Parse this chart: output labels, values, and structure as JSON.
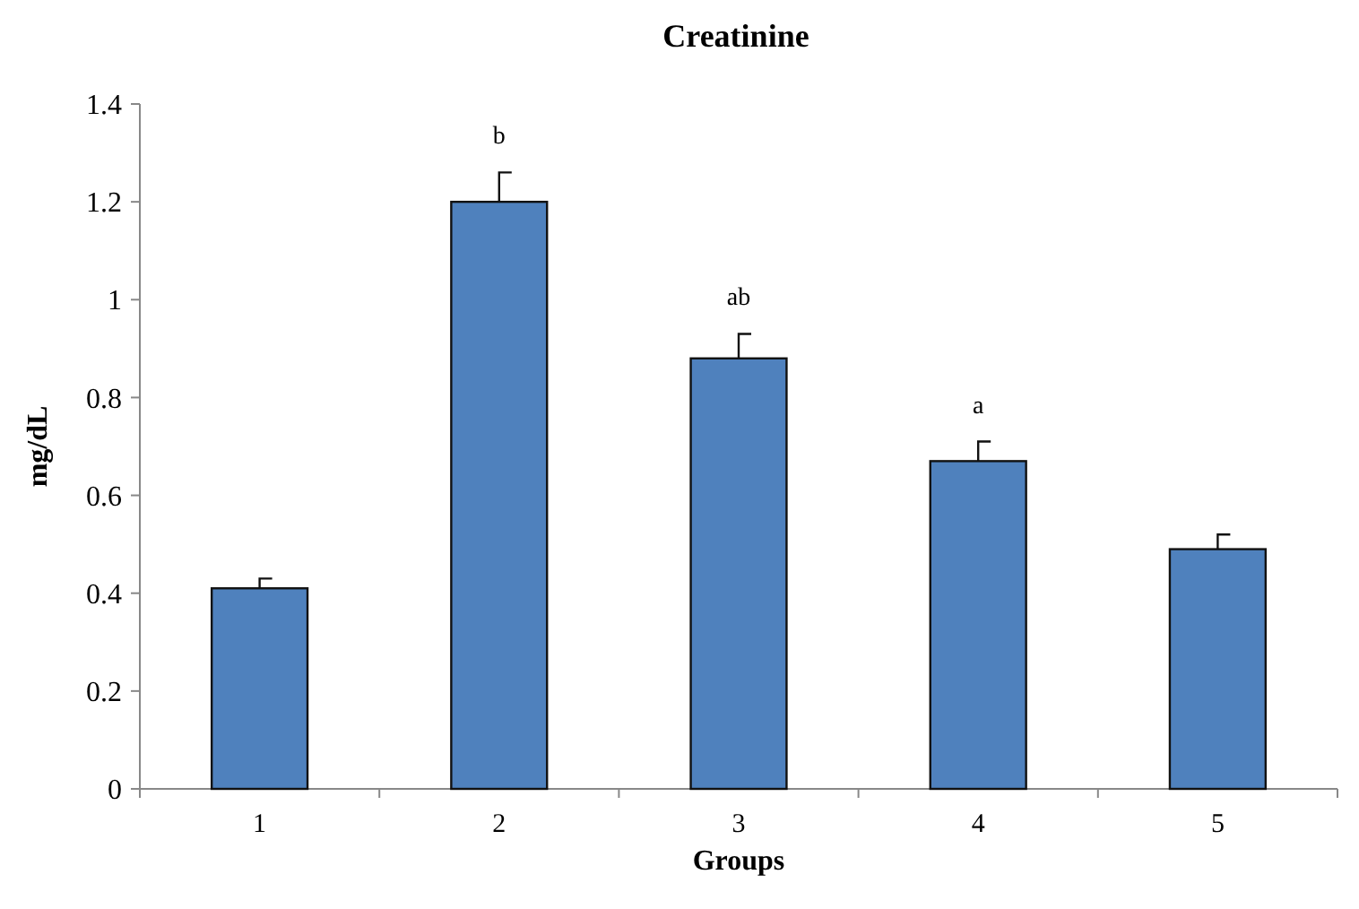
{
  "chart_data": {
    "type": "bar",
    "title": "Creatinine",
    "xlabel": "Groups",
    "ylabel": "mg/dL",
    "categories": [
      "1",
      "2",
      "3",
      "4",
      "5"
    ],
    "values": [
      0.41,
      1.2,
      0.88,
      0.67,
      0.49
    ],
    "errors": [
      [
        0.41,
        0.43
      ],
      [
        1.2,
        1.26
      ],
      [
        0.88,
        0.93
      ],
      [
        0.67,
        0.71
      ],
      [
        0.49,
        0.52
      ]
    ],
    "color": "#4f81bd",
    "ylim": [
      0,
      1.4
    ],
    "yticks": [
      0,
      0.2,
      0.4,
      {
        "value": 0.6,
        "label": "0.6"
      },
      0.8,
      1,
      1.2,
      1.4
    ],
    "annotations": [
      {
        "text": "b",
        "x": "2",
        "y": 1.26
      },
      {
        "text": "ab",
        "x": "3",
        "y": 0.93
      },
      {
        "text": "a",
        "x": "4",
        "y": 0.71
      }
    ],
    "grid": false
  }
}
